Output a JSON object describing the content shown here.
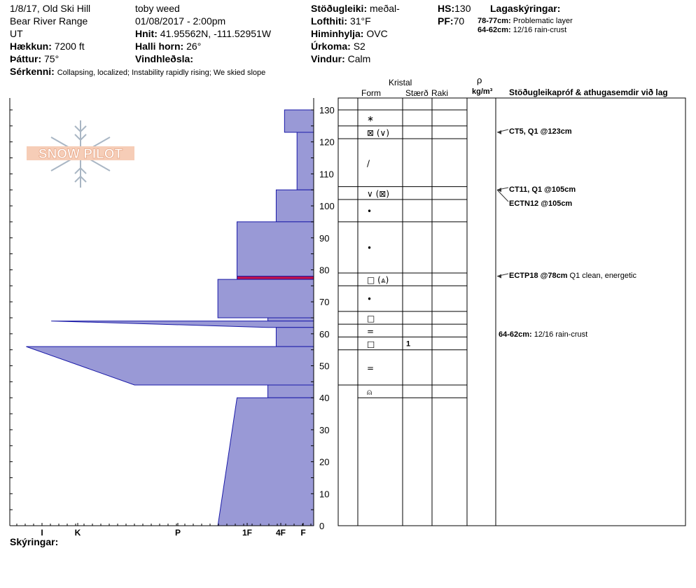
{
  "header": {
    "location_line": "1/8/17, Old Ski Hill",
    "range": "Bear River Range",
    "state": "UT",
    "elevation": {
      "label": "Hækkun:",
      "value": "7200 ft"
    },
    "aspect": {
      "label": "Þáttur:",
      "value": "75°"
    },
    "features": {
      "label": "Sérkenni:",
      "value": "Collapsing, localized;  Instability rapidly rising;  We skied slope"
    },
    "observer": "toby weed",
    "datetime": "01/08/2017 - 2:00pm",
    "coords": {
      "label": "Hnit:",
      "value": "41.95562N, -111.52951W"
    },
    "slope": {
      "label": "Halli horn:",
      "value": "26°"
    },
    "wind_loading": {
      "label": "Vindhleðsla:",
      "value": ""
    },
    "stability": {
      "label": "Stöðugleiki:",
      "value": "meðal-"
    },
    "air_temp": {
      "label": "Lofthiti:",
      "value": "31°F"
    },
    "sky": {
      "label": "Himinhylja:",
      "value": "OVC"
    },
    "precip": {
      "label": "Úrkoma:",
      "value": "S2"
    },
    "wind": {
      "label": "Vindur:",
      "value": "Calm"
    },
    "hs": {
      "label": "HS:",
      "value": "130"
    },
    "pf": {
      "label": "PF:",
      "value": "70"
    },
    "layer_notes": {
      "label": "Lagaskýringar:",
      "items": [
        {
          "range": "78-77cm:",
          "text": "Problematic layer"
        },
        {
          "range": "64-62cm:",
          "text": "12/16 rain-crust"
        }
      ]
    }
  },
  "logo_text": "SNOW PILOT",
  "table_headers": {
    "crystal": "Kristal",
    "form": "Form",
    "size": "Stærð",
    "moisture": "Raki",
    "rho": "ρ",
    "density_unit": "kg/m³",
    "tests": "Stöðugleikapróf & athugasemdir við lag"
  },
  "footer": {
    "label": "Skýringar:"
  },
  "colors": {
    "hardness_fill": "#9999d6",
    "hardness_edge": "#1a1aa8",
    "problem_layer": "#c0104a",
    "arrow": "#333333"
  },
  "chart_data": {
    "type": "snow-profile",
    "y_axis": {
      "min": 0,
      "max": 130,
      "ticks": [
        0,
        10,
        20,
        30,
        40,
        50,
        60,
        70,
        80,
        90,
        100,
        110,
        120,
        130
      ]
    },
    "hardness_scale": [
      "I",
      "K",
      "P",
      "1F",
      "4F",
      "F"
    ],
    "hardness_layers": [
      {
        "top": 130,
        "bottom": 123,
        "hardness": 0.35
      },
      {
        "top": 123,
        "bottom": 105,
        "hardness": 0.2
      },
      {
        "top": 105,
        "bottom": 95,
        "hardness": 0.45
      },
      {
        "top": 95,
        "bottom": 78,
        "hardness": 0.92
      },
      {
        "top": 78,
        "bottom": 77,
        "hardness": 0.92,
        "problematic": true
      },
      {
        "top": 77,
        "bottom": 65,
        "hardness": 1.15
      },
      {
        "top": 65,
        "bottom": 64,
        "hardness": 0.55
      },
      {
        "top": 64,
        "bottom": 62,
        "hardness": 3.15,
        "slanted": true,
        "hardness_bottom": 0.55
      },
      {
        "top": 62,
        "bottom": 56,
        "hardness": 0.45
      },
      {
        "top": 56,
        "bottom": 44,
        "hardness": 3.45,
        "slanted": true,
        "hardness_bottom": 2.15
      },
      {
        "top": 44,
        "bottom": 40,
        "hardness": 0.55
      },
      {
        "top": 40,
        "bottom": 0,
        "hardness": 0.92,
        "slanted": true,
        "hardness_bottom": 1.15
      }
    ],
    "layers": [
      {
        "top": 130,
        "bottom": 125,
        "form": "∗",
        "size": "",
        "moisture": ""
      },
      {
        "top": 125,
        "bottom": 121,
        "form": "⊠ (∨)",
        "size": "",
        "moisture": ""
      },
      {
        "top": 121,
        "bottom": 106,
        "form": "/",
        "size": "",
        "moisture": ""
      },
      {
        "top": 106,
        "bottom": 102,
        "form": "∨ (⊠)",
        "size": "",
        "moisture": ""
      },
      {
        "top": 102,
        "bottom": 95,
        "form": "•",
        "size": "",
        "moisture": ""
      },
      {
        "top": 95,
        "bottom": 79,
        "form": "•",
        "size": "",
        "moisture": ""
      },
      {
        "top": 79,
        "bottom": 75,
        "form": "□ (⩓)",
        "size": "",
        "moisture": ""
      },
      {
        "top": 75,
        "bottom": 67,
        "form": "•",
        "size": "",
        "moisture": ""
      },
      {
        "top": 67,
        "bottom": 63,
        "form": "□",
        "size": "",
        "moisture": ""
      },
      {
        "top": 63,
        "bottom": 59,
        "form": "=",
        "size": "",
        "moisture": ""
      },
      {
        "top": 59,
        "bottom": 55,
        "form": "□",
        "size": "1",
        "moisture": ""
      },
      {
        "top": 55,
        "bottom": 44,
        "form": "=",
        "size": "",
        "moisture": ""
      },
      {
        "top": 44,
        "bottom": 40,
        "form": "⍝",
        "size": "",
        "moisture": ""
      }
    ],
    "tests": [
      {
        "depth": 123,
        "label": "CT5, Q1 @123cm",
        "comment": ""
      },
      {
        "depth": 105,
        "label": "CT11, Q1 @105cm",
        "comment": ""
      },
      {
        "depth": 105,
        "label": "ECTN12 @105cm",
        "comment": ""
      },
      {
        "depth": 78,
        "label": "ECTP18 @78cm",
        "comment": "Q1 clean, energetic"
      }
    ],
    "layer_comments": [
      {
        "depth": 63,
        "range": "64-62cm:",
        "text": "12/16 rain-crust"
      }
    ]
  }
}
